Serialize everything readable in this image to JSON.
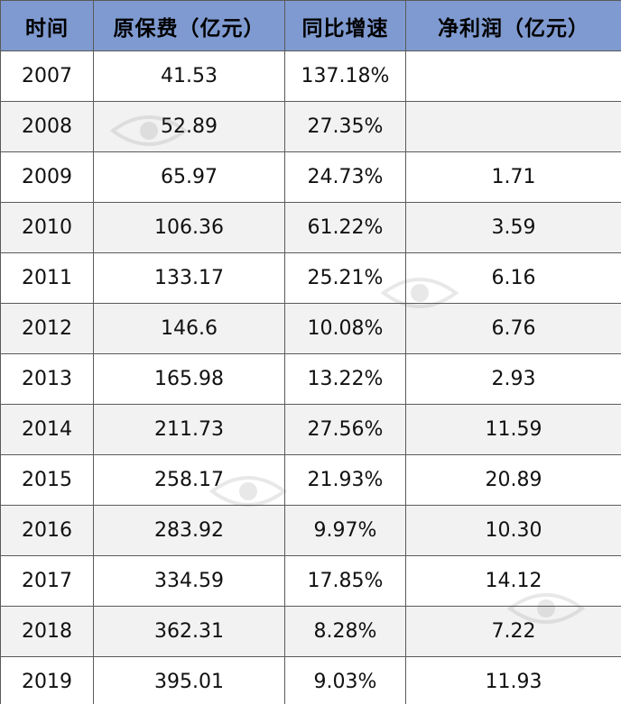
{
  "table": {
    "headers": [
      "时间",
      "原保费（亿元）",
      "同比增速",
      "净利润（亿元）"
    ],
    "rows": [
      [
        "2007",
        "41.53",
        "137.18%",
        ""
      ],
      [
        "2008",
        "52.89",
        "27.35%",
        ""
      ],
      [
        "2009",
        "65.97",
        "24.73%",
        "1.71"
      ],
      [
        "2010",
        "106.36",
        "61.22%",
        "3.59"
      ],
      [
        "2011",
        "133.17",
        "25.21%",
        "6.16"
      ],
      [
        "2012",
        "146.6",
        "10.08%",
        "6.76"
      ],
      [
        "2013",
        "165.98",
        "13.22%",
        "2.93"
      ],
      [
        "2014",
        "211.73",
        "27.56%",
        "11.59"
      ],
      [
        "2015",
        "258.17",
        "21.93%",
        "20.89"
      ],
      [
        "2016",
        "283.92",
        "9.97%",
        "10.30"
      ],
      [
        "2017",
        "334.59",
        "17.85%",
        "14.12"
      ],
      [
        "2018",
        "362.31",
        "8.28%",
        "7.22"
      ],
      [
        "2019",
        "395.01",
        "9.03%",
        "11.93"
      ]
    ]
  },
  "colors": {
    "header_bg": "#7f9ad0",
    "row_alt_bg": "#f2f2f2",
    "border": "#5a5a5a"
  },
  "watermark_icon": "eye-logo-icon"
}
